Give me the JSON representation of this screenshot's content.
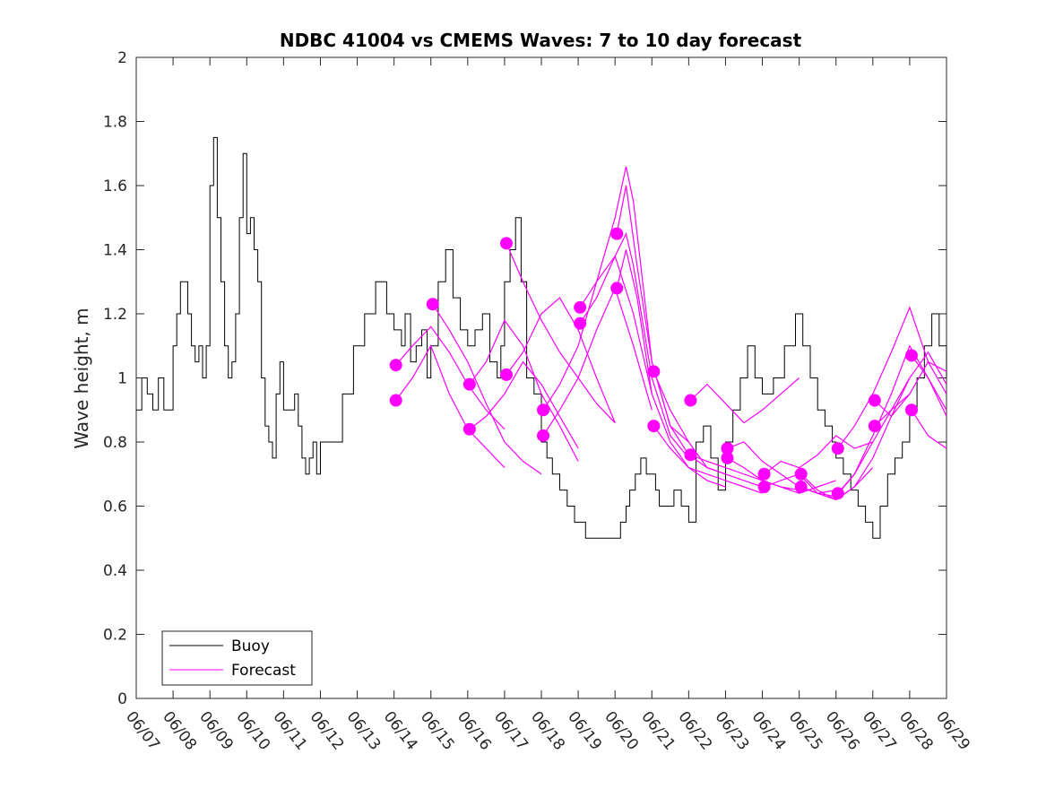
{
  "colors": {
    "buoy": "#000000",
    "forecast": "#ff00ff",
    "axes": "#262626",
    "background": "#ffffff"
  },
  "chart_data": {
    "type": "line",
    "title": "NDBC 41004 vs CMEMS Waves: 7 to 10 day forecast",
    "xlabel": "",
    "ylabel": "Wave height, m",
    "xlim": [
      "06/07",
      "06/29"
    ],
    "ylim": [
      0,
      2
    ],
    "grid": false,
    "legend_placement": "bottom-left",
    "x_tick_labels": [
      "06/07",
      "06/08",
      "06/09",
      "06/10",
      "06/11",
      "06/12",
      "06/13",
      "06/14",
      "06/15",
      "06/16",
      "06/17",
      "06/18",
      "06/19",
      "06/20",
      "06/21",
      "06/22",
      "06/23",
      "06/24",
      "06/25",
      "06/26",
      "06/27",
      "06/28",
      "06/29"
    ],
    "y_tick_labels": [
      "0",
      "0.2",
      "0.4",
      "0.6",
      "0.8",
      "1",
      "1.2",
      "1.4",
      "1.6",
      "1.8",
      "2"
    ],
    "y_tick_values": [
      0,
      0.2,
      0.4,
      0.6,
      0.8,
      1,
      1.2,
      1.4,
      1.6,
      1.8,
      2
    ],
    "legend": [
      "Buoy",
      "Forecast"
    ],
    "buoy": {
      "name": "Buoy",
      "x_days": [
        0,
        0.15,
        0.3,
        0.45,
        0.6,
        0.75,
        0.85,
        1.0,
        1.1,
        1.2,
        1.3,
        1.4,
        1.5,
        1.6,
        1.7,
        1.8,
        1.9,
        2.0,
        2.1,
        2.2,
        2.3,
        2.4,
        2.5,
        2.6,
        2.7,
        2.8,
        2.9,
        3.0,
        3.1,
        3.2,
        3.3,
        3.4,
        3.5,
        3.6,
        3.7,
        3.8,
        3.9,
        4.0,
        4.1,
        4.2,
        4.3,
        4.4,
        4.5,
        4.6,
        4.7,
        4.8,
        4.9,
        5.0,
        5.3,
        5.6,
        5.9,
        6.2,
        6.5,
        6.8,
        7.0,
        7.2,
        7.3,
        7.45,
        7.6,
        7.75,
        7.9,
        8.0,
        8.2,
        8.4,
        8.6,
        8.8,
        9.0,
        9.2,
        9.4,
        9.6,
        9.8,
        9.9,
        10.0,
        10.15,
        10.3,
        10.45,
        10.6,
        10.8,
        11.0,
        11.15,
        11.3,
        11.5,
        11.7,
        11.9,
        12.0,
        12.2,
        12.4,
        12.6,
        12.8,
        13.0,
        13.15,
        13.3,
        13.4,
        13.55,
        13.7,
        13.85,
        14.0,
        14.1,
        14.2,
        14.3,
        14.4,
        14.5,
        14.6,
        14.8,
        15.0,
        15.2,
        15.4,
        15.6,
        15.8,
        16.0,
        16.2,
        16.4,
        16.6,
        16.8,
        17.0,
        17.3,
        17.6,
        17.9,
        18.1,
        18.3,
        18.5,
        18.7,
        18.9,
        19.0,
        19.2,
        19.4,
        19.6,
        19.8,
        20.0,
        20.2,
        20.4,
        20.6,
        20.8,
        21.0,
        21.2,
        21.4,
        21.6,
        21.8,
        22.0
      ],
      "y": [
        0.9,
        1.0,
        0.95,
        0.9,
        1.0,
        0.9,
        0.9,
        1.1,
        1.2,
        1.3,
        1.3,
        1.2,
        1.1,
        1.05,
        1.1,
        1.0,
        1.1,
        1.6,
        1.75,
        1.5,
        1.3,
        1.1,
        1.0,
        1.05,
        1.2,
        1.5,
        1.7,
        1.45,
        1.5,
        1.4,
        1.3,
        1.0,
        0.85,
        0.8,
        0.75,
        0.95,
        1.05,
        0.9,
        0.9,
        0.9,
        0.95,
        0.85,
        0.75,
        0.7,
        0.75,
        0.8,
        0.7,
        0.8,
        0.8,
        0.95,
        1.1,
        1.2,
        1.3,
        1.2,
        1.15,
        1.1,
        1.2,
        1.05,
        1.1,
        1.15,
        1.0,
        1.1,
        1.3,
        1.4,
        1.25,
        1.15,
        1.1,
        1.15,
        1.2,
        1.05,
        1.0,
        1.1,
        1.3,
        1.4,
        1.5,
        1.3,
        1.0,
        0.95,
        0.8,
        0.75,
        0.7,
        0.65,
        0.6,
        0.55,
        0.55,
        0.5,
        0.5,
        0.5,
        0.5,
        0.5,
        0.55,
        0.6,
        0.65,
        0.7,
        0.75,
        0.7,
        0.7,
        0.65,
        0.6,
        0.6,
        0.6,
        0.6,
        0.65,
        0.6,
        0.55,
        0.8,
        0.85,
        0.75,
        0.65,
        0.8,
        0.9,
        1.0,
        1.1,
        1.0,
        0.95,
        1.0,
        1.1,
        1.2,
        1.1,
        1.0,
        0.9,
        0.85,
        0.8,
        0.75,
        0.7,
        0.65,
        0.6,
        0.55,
        0.5,
        0.6,
        0.7,
        0.75,
        0.8,
        0.9,
        1.0,
        1.1,
        1.2,
        1.1,
        1.0
      ]
    },
    "forecast_series": [
      {
        "x_days": [
          7.05,
          7.5,
          8.0,
          8.5,
          9.0,
          9.5,
          10.0
        ],
        "y": [
          1.04,
          1.1,
          1.16,
          1.08,
          0.98,
          0.9,
          0.84
        ]
      },
      {
        "x_days": [
          7.05,
          7.5,
          8.0,
          8.5,
          9.0,
          9.5,
          10.0
        ],
        "y": [
          0.93,
          1.0,
          1.1,
          0.95,
          0.84,
          0.78,
          0.72
        ]
      },
      {
        "x_days": [
          8.05,
          8.5,
          9.0,
          9.5,
          10.0,
          10.5,
          11.0
        ],
        "y": [
          1.23,
          1.15,
          1.05,
          0.92,
          0.8,
          0.74,
          0.7
        ]
      },
      {
        "x_days": [
          9.05,
          9.5,
          10.0,
          10.5,
          11.0,
          11.5,
          12.0
        ],
        "y": [
          0.98,
          1.05,
          1.18,
          1.1,
          0.95,
          0.85,
          0.74
        ]
      },
      {
        "x_days": [
          9.05,
          9.5,
          10.0,
          10.5,
          11.0,
          11.5,
          12.0
        ],
        "y": [
          0.84,
          0.88,
          0.95,
          1.05,
          0.98,
          0.88,
          0.78
        ]
      },
      {
        "x_days": [
          10.05,
          10.5,
          11.0,
          11.5,
          12.0,
          12.5,
          13.0
        ],
        "y": [
          1.42,
          1.3,
          1.18,
          1.08,
          1.0,
          0.92,
          0.86
        ]
      },
      {
        "x_days": [
          10.05,
          10.5,
          11.0,
          11.5,
          12.0,
          12.5,
          13.0
        ],
        "y": [
          1.01,
          1.08,
          1.2,
          1.25,
          1.15,
          1.0,
          0.86
        ]
      },
      {
        "x_days": [
          11.05,
          11.5,
          12.0,
          12.5,
          13.0,
          13.5,
          14.0
        ],
        "y": [
          0.9,
          0.98,
          1.1,
          1.3,
          1.38,
          1.2,
          0.95
        ]
      },
      {
        "x_days": [
          11.05,
          11.5,
          12.0,
          12.5,
          13.0,
          13.5,
          14.0
        ],
        "y": [
          0.82,
          0.9,
          1.0,
          1.15,
          1.28,
          1.1,
          0.9
        ]
      },
      {
        "x_days": [
          12.05,
          12.5,
          13.0,
          13.3,
          13.5,
          14.0,
          14.5,
          15.0
        ],
        "y": [
          1.22,
          1.3,
          1.5,
          1.66,
          1.55,
          1.05,
          0.85,
          0.8
        ]
      },
      {
        "x_days": [
          12.05,
          12.5,
          13.0,
          13.3,
          13.5,
          14.0,
          14.5,
          15.0
        ],
        "y": [
          1.17,
          1.25,
          1.38,
          1.45,
          1.35,
          1.0,
          0.82,
          0.75
        ]
      },
      {
        "x_days": [
          13.05,
          13.3,
          13.6,
          14.0,
          14.5,
          15.0,
          15.5,
          16.0
        ],
        "y": [
          1.45,
          1.6,
          1.35,
          1.05,
          0.85,
          0.76,
          0.72,
          0.7
        ]
      },
      {
        "x_days": [
          13.05,
          13.3,
          13.6,
          14.0,
          14.5,
          15.0,
          15.5,
          16.0
        ],
        "y": [
          1.28,
          1.4,
          1.25,
          0.95,
          0.8,
          0.72,
          0.68,
          0.66
        ]
      },
      {
        "x_days": [
          14.05,
          14.5,
          15.0,
          15.5,
          16.0,
          16.5,
          17.0
        ],
        "y": [
          1.02,
          0.9,
          0.8,
          0.72,
          0.7,
          0.68,
          0.66
        ]
      },
      {
        "x_days": [
          14.05,
          14.5,
          15.0,
          15.5,
          16.0,
          16.5,
          17.0
        ],
        "y": [
          0.85,
          0.78,
          0.72,
          0.7,
          0.68,
          0.66,
          0.64
        ]
      },
      {
        "x_days": [
          15.05,
          15.5,
          16.0,
          16.5,
          17.0,
          17.5,
          18.0
        ],
        "y": [
          0.93,
          0.98,
          0.92,
          0.86,
          0.9,
          0.95,
          1.0
        ]
      },
      {
        "x_days": [
          15.05,
          15.5,
          16.0,
          16.5,
          17.0,
          17.5,
          18.0
        ],
        "y": [
          0.76,
          0.74,
          0.72,
          0.7,
          0.68,
          0.66,
          0.65
        ]
      },
      {
        "x_days": [
          16.05,
          16.5,
          17.0,
          17.5,
          18.0,
          18.5,
          19.0
        ],
        "y": [
          0.78,
          0.8,
          0.74,
          0.7,
          0.66,
          0.64,
          0.65
        ]
      },
      {
        "x_days": [
          16.05,
          16.5,
          17.0,
          17.5,
          18.0,
          18.5,
          19.0
        ],
        "y": [
          0.75,
          0.72,
          0.68,
          0.66,
          0.64,
          0.66,
          0.68
        ]
      },
      {
        "x_days": [
          17.05,
          17.5,
          18.0,
          18.5,
          19.0,
          19.5,
          20.0
        ],
        "y": [
          0.7,
          0.74,
          0.72,
          0.76,
          0.82,
          0.78,
          0.8
        ]
      },
      {
        "x_days": [
          17.05,
          17.5,
          18.0,
          18.5,
          19.0,
          19.5,
          20.0
        ],
        "y": [
          0.66,
          0.68,
          0.7,
          0.64,
          0.62,
          0.66,
          0.72
        ]
      },
      {
        "x_days": [
          18.05,
          18.5,
          19.0,
          19.5,
          20.0,
          20.5,
          21.0
        ],
        "y": [
          0.7,
          0.65,
          0.62,
          0.66,
          0.75,
          0.88,
          1.0
        ]
      },
      {
        "x_days": [
          18.05,
          18.5,
          19.0,
          19.5,
          20.0,
          20.5,
          21.0
        ],
        "y": [
          0.66,
          0.64,
          0.63,
          0.7,
          0.8,
          0.9,
          0.95
        ]
      },
      {
        "x_days": [
          19.05,
          19.5,
          20.0,
          20.5,
          21.0,
          21.5,
          22.0
        ],
        "y": [
          0.78,
          0.85,
          0.95,
          1.08,
          1.22,
          1.05,
          0.95
        ]
      },
      {
        "x_days": [
          19.05,
          19.5,
          20.0,
          20.5,
          21.0,
          21.5,
          22.0
        ],
        "y": [
          0.64,
          0.7,
          0.82,
          0.95,
          1.1,
          1.0,
          0.9
        ]
      },
      {
        "x_days": [
          20.05,
          20.5,
          21.0,
          21.5,
          22.0
        ],
        "y": [
          0.93,
          0.88,
          0.95,
          1.05,
          1.02
        ]
      },
      {
        "x_days": [
          20.05,
          20.5,
          21.0,
          21.5,
          22.0
        ],
        "y": [
          0.85,
          0.9,
          1.0,
          1.08,
          0.98
        ]
      },
      {
        "x_days": [
          21.05,
          21.5,
          22.0
        ],
        "y": [
          1.07,
          1.0,
          0.88
        ]
      },
      {
        "x_days": [
          21.05,
          21.5,
          22.0
        ],
        "y": [
          0.9,
          0.82,
          0.78
        ]
      }
    ]
  }
}
